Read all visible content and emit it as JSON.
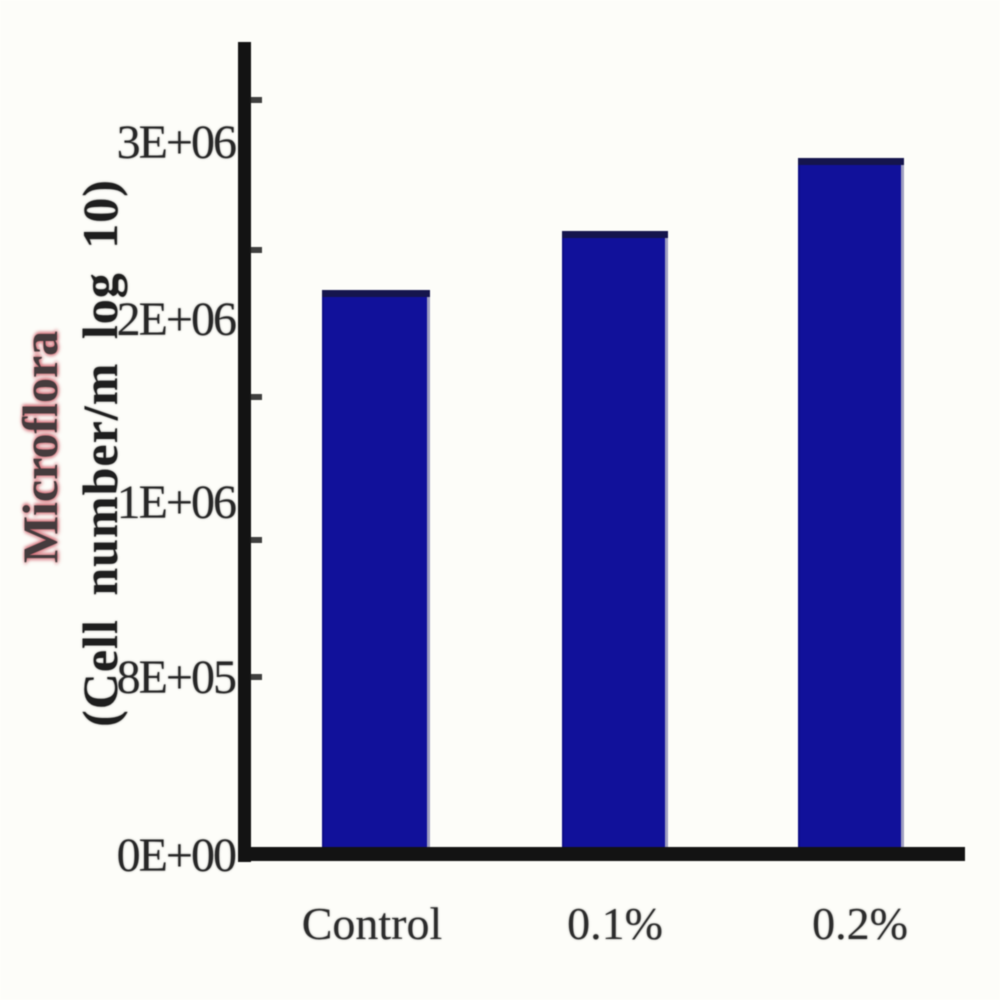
{
  "chart_data": {
    "type": "bar",
    "title": "",
    "categories": [
      "Control",
      "0.1%",
      "0.2%"
    ],
    "values": [
      2200000,
      2500000,
      2900000
    ],
    "series": [
      {
        "name": "Microflora",
        "values": [
          2200000,
          2500000,
          2900000
        ]
      }
    ],
    "xlabel": "",
    "ylabel_line1": "Microflora",
    "ylabel_line2": "(Cell number/m log 10)",
    "y_ticks": [
      "3E+06",
      "2E+06",
      "1E+06",
      "8E+05",
      "0E+00"
    ],
    "ylim": [
      0,
      3500000
    ],
    "grid": false,
    "legend": false,
    "bar_color": "#11119a",
    "bar_top_edge_color": "#15154d",
    "axis_color": "#131313",
    "tick_label_color": "#272727",
    "ylabel1_color": "#453b3d",
    "ylabel1_halo_color": "#d0646e",
    "background_color": "#fdfdf9"
  }
}
